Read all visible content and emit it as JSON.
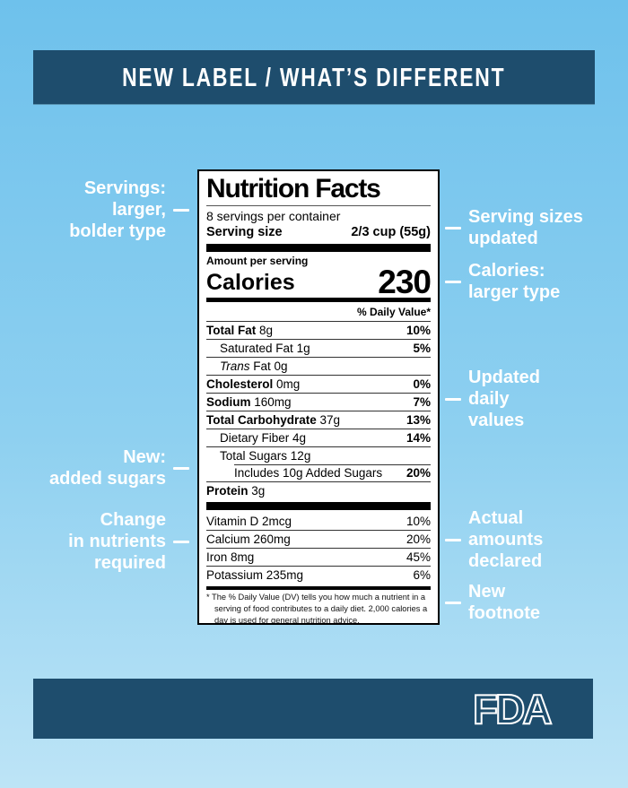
{
  "header": {
    "title": "NEW LABEL / WHAT’S DIFFERENT"
  },
  "annotations": {
    "left": [
      {
        "lines": [
          "Servings:",
          "larger,",
          "bolder type"
        ]
      },
      {
        "lines": [
          "New:",
          "added sugars"
        ]
      },
      {
        "lines": [
          "Change",
          "in nutrients",
          "required"
        ]
      }
    ],
    "right": [
      {
        "lines": [
          "Serving sizes",
          "updated"
        ]
      },
      {
        "lines": [
          "Calories:",
          "larger type"
        ]
      },
      {
        "lines": [
          "Updated",
          "daily",
          "values"
        ]
      },
      {
        "lines": [
          "Actual",
          "amounts",
          "declared"
        ]
      },
      {
        "lines": [
          "New",
          "footnote"
        ]
      }
    ]
  },
  "label": {
    "title": "Nutrition Facts",
    "servings_per_container": "8 servings per container",
    "serving_size_label": "Serving size",
    "serving_size_value": "2/3 cup (55g)",
    "amount_per_serving": "Amount per serving",
    "calories_label": "Calories",
    "calories_value": "230",
    "daily_value_header": "% Daily Value*",
    "rows": [
      {
        "name": "Total Fat",
        "amount": "8g",
        "dv": "10%",
        "bold": true,
        "dv_bold": true,
        "indent": 0
      },
      {
        "name": "Saturated Fat",
        "amount": "1g",
        "dv": "5%",
        "dv_bold": true,
        "indent": 1
      },
      {
        "italic": "Trans",
        "name": "Fat",
        "amount": "0g",
        "dv": "",
        "indent": 1
      },
      {
        "name": "Cholesterol",
        "amount": "0mg",
        "dv": "0%",
        "bold": true,
        "dv_bold": true,
        "indent": 0
      },
      {
        "name": "Sodium",
        "amount": "160mg",
        "dv": "7%",
        "bold": true,
        "dv_bold": true,
        "indent": 0
      },
      {
        "name": "Total Carbohydrate",
        "amount": "37g",
        "dv": "13%",
        "bold": true,
        "dv_bold": true,
        "indent": 0
      },
      {
        "name": "Dietary Fiber",
        "amount": "4g",
        "dv": "14%",
        "dv_bold": true,
        "indent": 1
      },
      {
        "name": "Total Sugars",
        "amount": "12g",
        "dv": "",
        "indent": 1
      },
      {
        "name": "Includes 10g Added Sugars",
        "amount": "",
        "dv": "20%",
        "dv_bold": true,
        "indent": 2,
        "rule_indent": true
      },
      {
        "name": "Protein",
        "amount": "3g",
        "dv": "",
        "bold": true,
        "indent": 0
      }
    ],
    "vitamins": [
      {
        "name": "Vitamin D",
        "amount": "2mcg",
        "dv": "10%"
      },
      {
        "name": "Calcium",
        "amount": "260mg",
        "dv": "20%"
      },
      {
        "name": "Iron",
        "amount": "8mg",
        "dv": "45%"
      },
      {
        "name": "Potassium",
        "amount": "235mg",
        "dv": "6%"
      }
    ],
    "footnote": "* The % Daily Value (DV) tells you how much a nutrient in a serving of food contributes to a daily diet. 2,000 calories a day is used for general nutrition advice."
  },
  "footer": {
    "logo_text": "FDA"
  },
  "colors": {
    "background_top": "#6ec1ec",
    "background_bottom": "#bde4f6",
    "bar_blue": "#1e4d6d",
    "text_white": "#ffffff",
    "label_black": "#000000"
  }
}
